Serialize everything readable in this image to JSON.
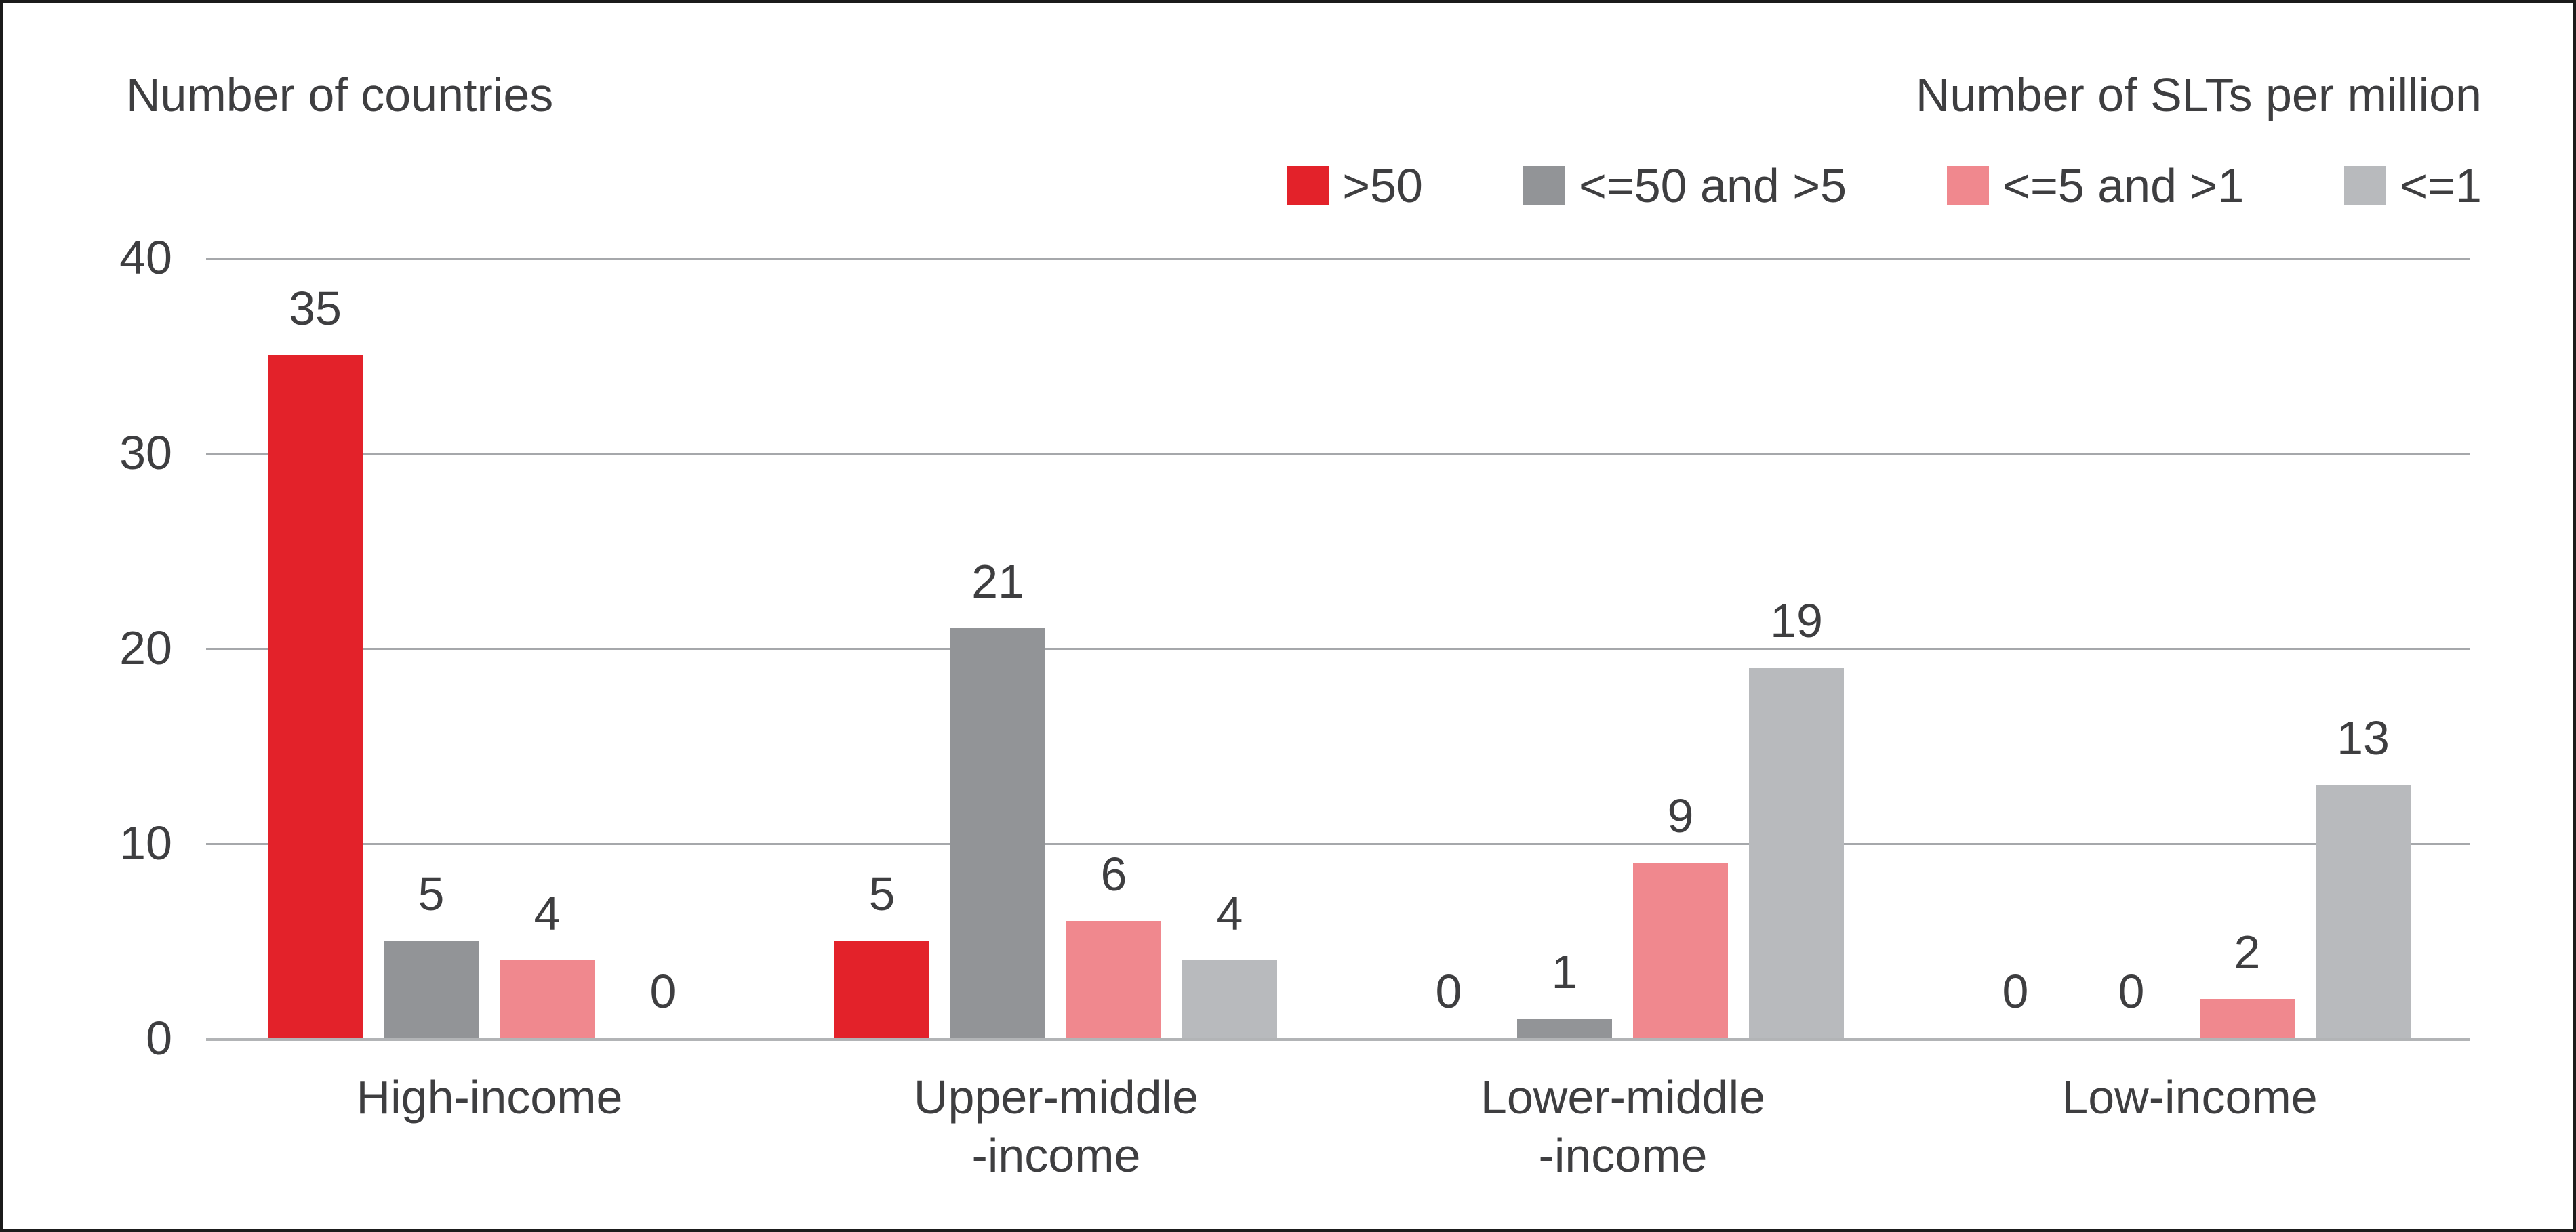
{
  "chart_data": {
    "type": "bar",
    "y_axis_title": "Number of countries",
    "legend_title": "Number of SLTs per million",
    "categories": [
      "High-income",
      "Upper-middle-income",
      "Lower-middle-income",
      "Low-income"
    ],
    "category_label_lines": [
      [
        "High-income"
      ],
      [
        "Upper-middle",
        "-income"
      ],
      [
        "Lower-middle",
        "-income"
      ],
      [
        "Low-income"
      ]
    ],
    "series": [
      {
        "name": ">50",
        "color": "#e3222a",
        "values": [
          35,
          5,
          0,
          0
        ]
      },
      {
        "name": "<=50 and >5",
        "color": "#929497",
        "values": [
          5,
          21,
          1,
          0
        ]
      },
      {
        "name": "<=5 and >1",
        "color": "#f0888e",
        "values": [
          4,
          6,
          9,
          2
        ]
      },
      {
        "name": "<=1",
        "color": "#b8babd",
        "values": [
          0,
          4,
          19,
          13
        ]
      }
    ],
    "yticks": [
      "40",
      "30",
      "20",
      "10",
      "0"
    ],
    "ylim": [
      0,
      40
    ],
    "grid": true,
    "legend_position": "top-right",
    "value_labels": true
  },
  "colors": {
    "text": "#3e3e40",
    "gridline": "#a6a8ab",
    "axis_line": "#b2b4b6",
    "border": "#1b1b1b",
    "background": "#ffffff"
  }
}
